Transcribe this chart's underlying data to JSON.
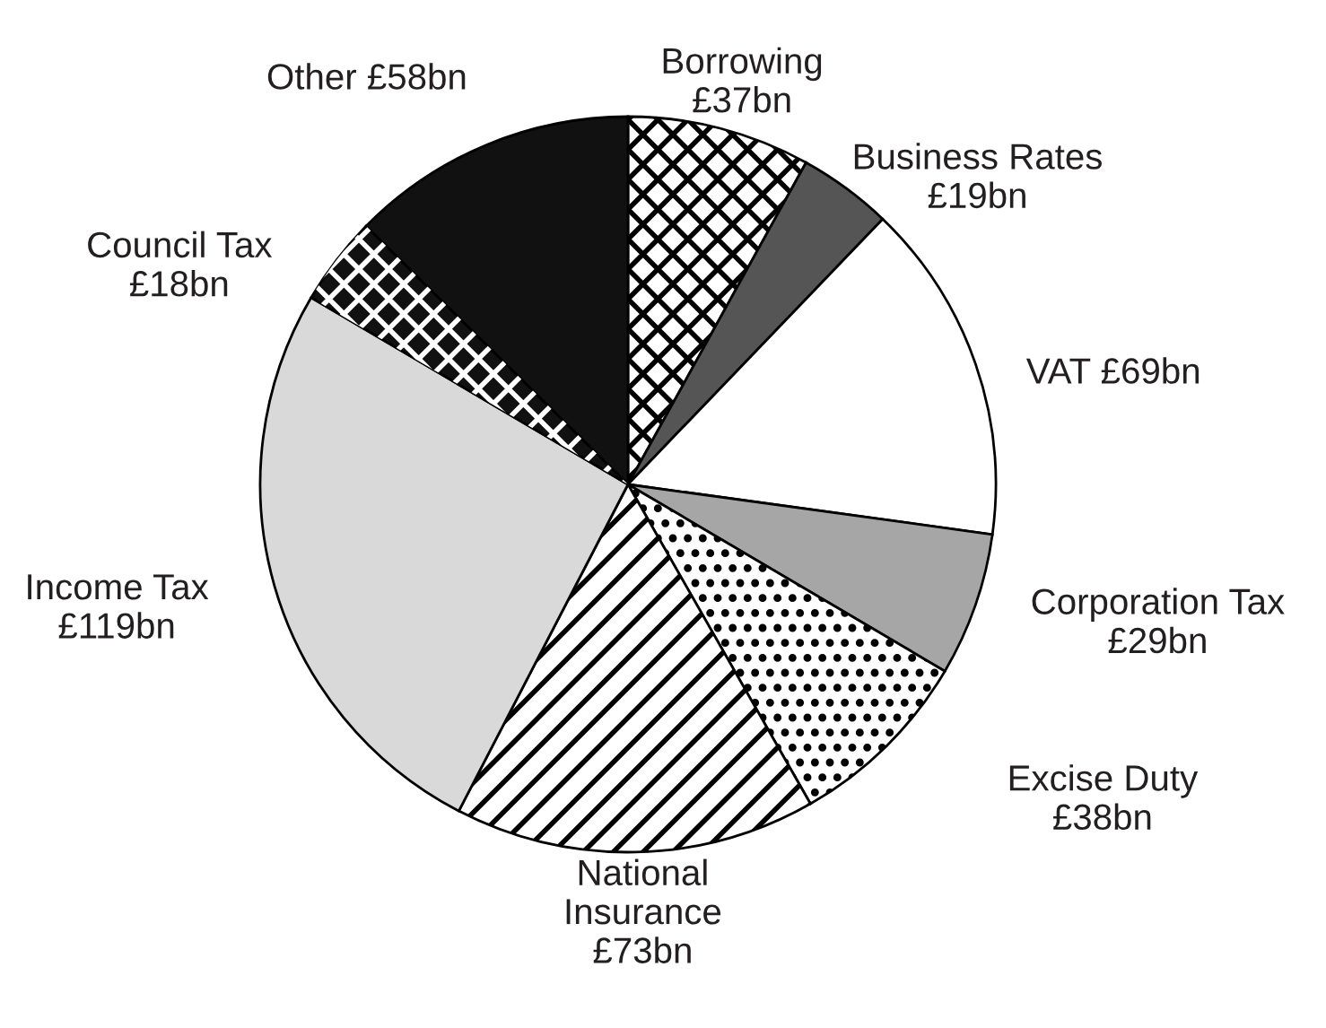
{
  "chart_data": {
    "type": "pie",
    "categories": [
      "Borrowing",
      "Business Rates",
      "VAT",
      "Corporation Tax",
      "Excise Duty",
      "National Insurance",
      "Income Tax",
      "Council Tax",
      "Other"
    ],
    "values": [
      37,
      19,
      69,
      29,
      38,
      73,
      119,
      18,
      58
    ],
    "value_labels": [
      "£37bn",
      "£19bn",
      "£69bn",
      "£29bn",
      "£38bn",
      "£73bn",
      "£119bn",
      "£18bn",
      "£58bn"
    ],
    "colors": [
      "#ffffff",
      "#555555",
      "#ffffff",
      "#a6a6a6",
      "#ffffff",
      "#ffffff",
      "#d9d9d9",
      "#111111",
      "#111111"
    ]
  }
}
